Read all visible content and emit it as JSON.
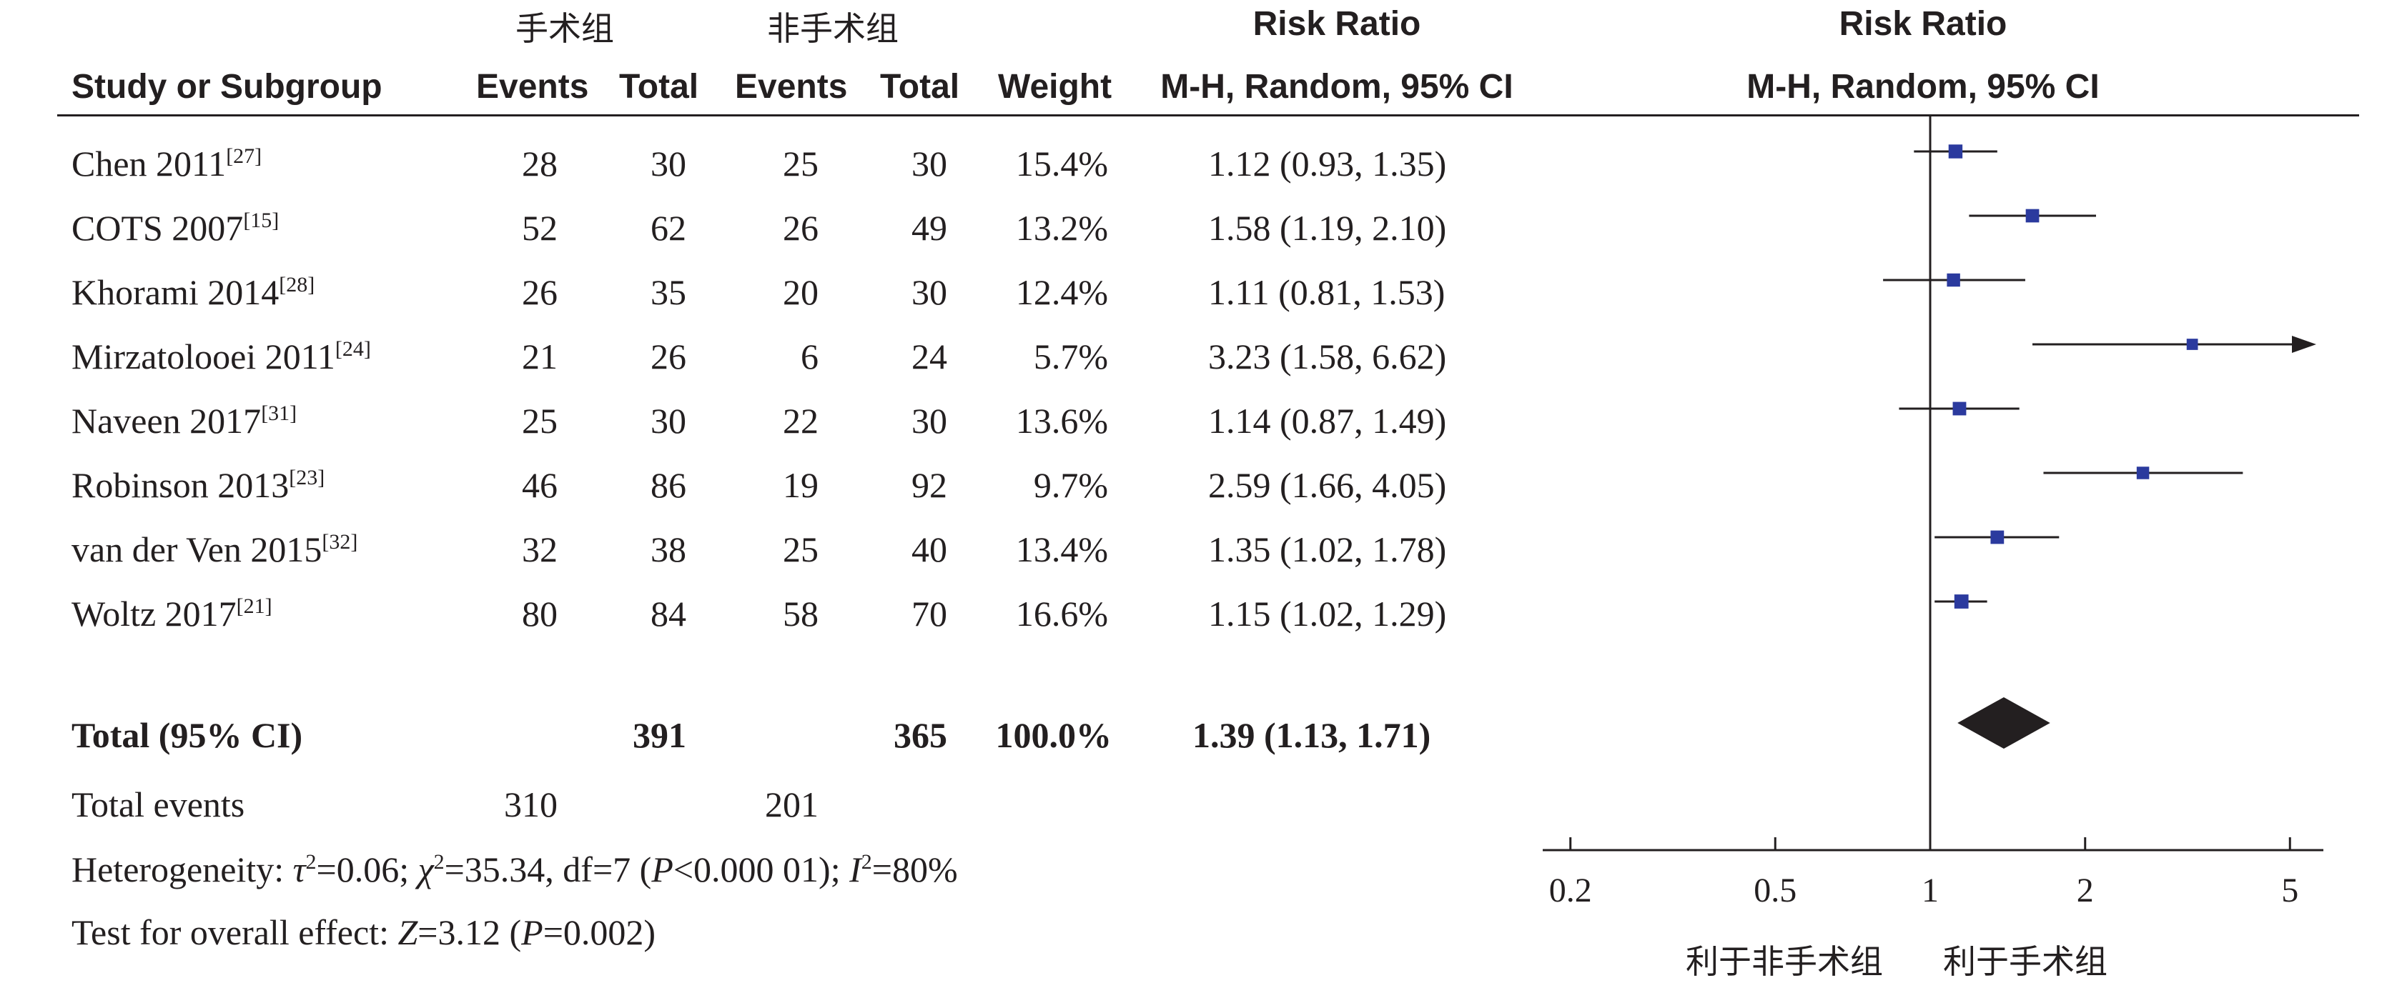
{
  "header": {
    "group_experimental": "手术组",
    "group_control": "非手术组",
    "col_study": "Study or Subgroup",
    "col_events_exp": "Events",
    "col_total_exp": "Total",
    "col_events_ctl": "Events",
    "col_total_ctl": "Total",
    "col_weight": "Weight",
    "rr_title_left": "Risk Ratio",
    "rr_method_left": "M-H, Random, 95% CI",
    "rr_title_right": "Risk Ratio",
    "rr_method_right": "M-H, Random, 95% CI"
  },
  "studies": [
    {
      "name": "Chen 2011",
      "ref": "[27]",
      "e1": "28",
      "n1": "30",
      "e2": "25",
      "n2": "30",
      "weight": "15.4%",
      "ci_text": "1.12 (0.93, 1.35)"
    },
    {
      "name": "COTS 2007",
      "ref": "[15]",
      "e1": "52",
      "n1": "62",
      "e2": "26",
      "n2": "49",
      "weight": "13.2%",
      "ci_text": "1.58 (1.19, 2.10)"
    },
    {
      "name": "Khorami 2014",
      "ref": "[28]",
      "e1": "26",
      "n1": "35",
      "e2": "20",
      "n2": "30",
      "weight": "12.4%",
      "ci_text": "1.11 (0.81, 1.53)"
    },
    {
      "name": "Mirzatolooei 2011",
      "ref": "[24]",
      "e1": "21",
      "n1": "26",
      "e2": "6",
      "n2": "24",
      "weight": "5.7%",
      "ci_text": "3.23 (1.58, 6.62)"
    },
    {
      "name": "Naveen 2017",
      "ref": "[31]",
      "e1": "25",
      "n1": "30",
      "e2": "22",
      "n2": "30",
      "weight": "13.6%",
      "ci_text": "1.14 (0.87, 1.49)"
    },
    {
      "name": "Robinson 2013",
      "ref": "[23]",
      "e1": "46",
      "n1": "86",
      "e2": "19",
      "n2": "92",
      "weight": "9.7%",
      "ci_text": "2.59 (1.66, 4.05)"
    },
    {
      "name": "van der Ven 2015",
      "ref": "[32]",
      "e1": "32",
      "n1": "38",
      "e2": "25",
      "n2": "40",
      "weight": "13.4%",
      "ci_text": "1.35 (1.02, 1.78)"
    },
    {
      "name": "Woltz 2017",
      "ref": "[21]",
      "e1": "80",
      "n1": "84",
      "e2": "58",
      "n2": "70",
      "weight": "16.6%",
      "ci_text": "1.15 (1.02, 1.29)"
    }
  ],
  "total": {
    "label": "Total (95% CI)",
    "n1": "391",
    "n2": "365",
    "weight": "100.0%",
    "ci_text": "1.39 (1.13, 1.71)"
  },
  "total_events": {
    "label": "Total events",
    "e1": "310",
    "e2": "201"
  },
  "heterogeneity": {
    "prefix": "Heterogeneity: ",
    "tau_sym": "τ",
    "tau_val": "=0.06; ",
    "chi_sym": "χ",
    "chi_val": "=35.34, df=7 (",
    "p_sym": "P",
    "p_val": "<0.000 01); ",
    "i_sym": "I",
    "i_val": "=80%"
  },
  "overall": {
    "prefix": "Test for overall effect: ",
    "z_sym": "Z",
    "z_val": "=3.12 (",
    "p_sym": "P",
    "p_val": "=0.002)"
  },
  "axis": {
    "favours_control": "利于非手术组",
    "favours_experimental": "利于手术组"
  },
  "colors": {
    "marker": "#2b3a9e",
    "diamond": "#231f20",
    "text": "#231f20"
  },
  "chart_data": {
    "type": "forest",
    "x_scale": "log",
    "xlim": [
      0.2,
      5
    ],
    "reference_line": 1,
    "ticks": [
      0.2,
      0.5,
      1,
      2,
      5
    ],
    "tick_labels": [
      "0.2",
      "0.5",
      "1",
      "2",
      "5"
    ],
    "points": [
      {
        "rr": 1.12,
        "lo": 0.93,
        "hi": 1.35,
        "weight": 15.4
      },
      {
        "rr": 1.58,
        "lo": 1.19,
        "hi": 2.1,
        "weight": 13.2
      },
      {
        "rr": 1.11,
        "lo": 0.81,
        "hi": 1.53,
        "weight": 12.4
      },
      {
        "rr": 3.23,
        "lo": 1.58,
        "hi": 6.62,
        "weight": 5.7
      },
      {
        "rr": 1.14,
        "lo": 0.87,
        "hi": 1.49,
        "weight": 13.6
      },
      {
        "rr": 2.59,
        "lo": 1.66,
        "hi": 4.05,
        "weight": 9.7
      },
      {
        "rr": 1.35,
        "lo": 1.02,
        "hi": 1.78,
        "weight": 13.4
      },
      {
        "rr": 1.15,
        "lo": 1.02,
        "hi": 1.29,
        "weight": 16.6
      }
    ],
    "pooled": {
      "rr": 1.39,
      "lo": 1.13,
      "hi": 1.71
    }
  }
}
